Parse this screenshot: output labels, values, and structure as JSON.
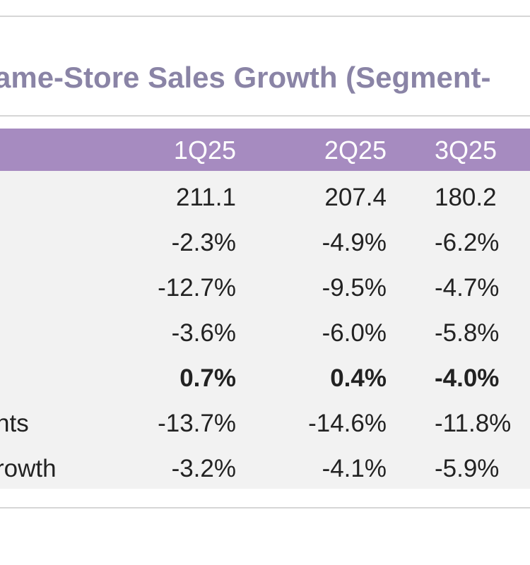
{
  "title": "ame-Store Sales Growth (Segment-",
  "table": {
    "columns": [
      "1Q25",
      "2Q25",
      "3Q25"
    ],
    "rows": [
      {
        "label": "",
        "values": [
          "211.1",
          "207.4",
          "180.2"
        ],
        "bold": false
      },
      {
        "label": "",
        "values": [
          "-2.3%",
          "-4.9%",
          "-6.2%"
        ],
        "bold": false
      },
      {
        "label": "",
        "values": [
          "-12.7%",
          "-9.5%",
          "-4.7%"
        ],
        "bold": false
      },
      {
        "label": "",
        "values": [
          "-3.6%",
          "-6.0%",
          "-5.8%"
        ],
        "bold": false
      },
      {
        "label": "",
        "values": [
          "0.7%",
          "0.4%",
          "-4.0%"
        ],
        "bold": true
      },
      {
        "label": "nts",
        "values": [
          "-13.7%",
          "-14.6%",
          "-11.8%"
        ],
        "bold": false
      },
      {
        "label": "rowth",
        "values": [
          "-3.2%",
          "-4.1%",
          "-5.9%"
        ],
        "bold": false
      }
    ]
  }
}
